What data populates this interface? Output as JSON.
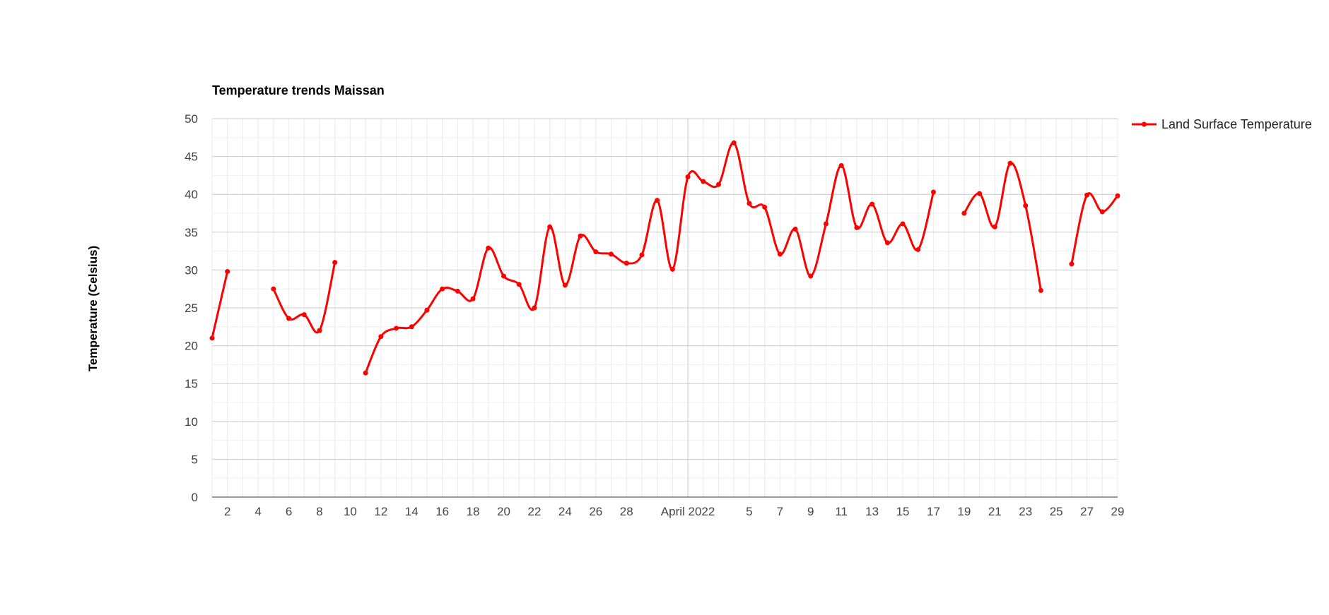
{
  "chart_data": {
    "type": "line",
    "title": "Temperature trends Maissan",
    "xlabel": "",
    "ylabel": "Temperature (Celsius)",
    "ylim": [
      0,
      50
    ],
    "yticks": [
      "0",
      "5",
      "10",
      "15",
      "20",
      "25",
      "30",
      "35",
      "40",
      "45",
      "50"
    ],
    "x_dates": [
      "2022-03-01",
      "2022-03-02",
      "2022-03-05",
      "2022-03-06",
      "2022-03-07",
      "2022-03-08",
      "2022-03-09",
      "2022-03-11",
      "2022-03-12",
      "2022-03-13",
      "2022-03-14",
      "2022-03-15",
      "2022-03-16",
      "2022-03-17",
      "2022-03-18",
      "2022-03-19",
      "2022-03-20",
      "2022-03-21",
      "2022-03-22",
      "2022-03-23",
      "2022-03-24",
      "2022-03-25",
      "2022-03-26",
      "2022-03-27",
      "2022-03-28",
      "2022-03-29",
      "2022-03-30",
      "2022-03-31",
      "2022-04-01",
      "2022-04-02",
      "2022-04-03",
      "2022-04-04",
      "2022-04-05",
      "2022-04-06",
      "2022-04-07",
      "2022-04-08",
      "2022-04-09",
      "2022-04-10",
      "2022-04-11",
      "2022-04-12",
      "2022-04-13",
      "2022-04-14",
      "2022-04-15",
      "2022-04-16",
      "2022-04-17",
      "2022-04-19",
      "2022-04-20",
      "2022-04-21",
      "2022-04-22",
      "2022-04-23",
      "2022-04-24",
      "2022-04-26",
      "2022-04-27",
      "2022-04-28",
      "2022-04-29"
    ],
    "xtick_labels": [
      "2",
      "4",
      "6",
      "8",
      "10",
      "12",
      "14",
      "16",
      "18",
      "20",
      "22",
      "24",
      "26",
      "28",
      "April 2022",
      "5",
      "7",
      "9",
      "11",
      "13",
      "15",
      "17",
      "19",
      "21",
      "23",
      "25",
      "27",
      "29"
    ],
    "series": [
      {
        "name": "Land Surface Temperature",
        "color": "#ff0000",
        "values": [
          21.0,
          29.8,
          27.5,
          23.6,
          24.1,
          22.0,
          31.0,
          16.4,
          21.2,
          22.3,
          22.5,
          24.7,
          27.5,
          27.2,
          26.2,
          32.9,
          29.2,
          28.1,
          25.0,
          35.7,
          28.0,
          34.5,
          32.4,
          32.1,
          30.9,
          32.0,
          39.2,
          30.1,
          42.3,
          41.7,
          41.3,
          46.8,
          38.8,
          38.3,
          32.1,
          35.4,
          29.2,
          36.1,
          43.8,
          35.6,
          38.7,
          33.6,
          36.1,
          32.7,
          40.3,
          37.5,
          40.1,
          35.7,
          44.1,
          38.5,
          27.3,
          30.8,
          39.9,
          37.7,
          39.8
        ]
      }
    ],
    "legend_position": "right",
    "grid": true
  }
}
